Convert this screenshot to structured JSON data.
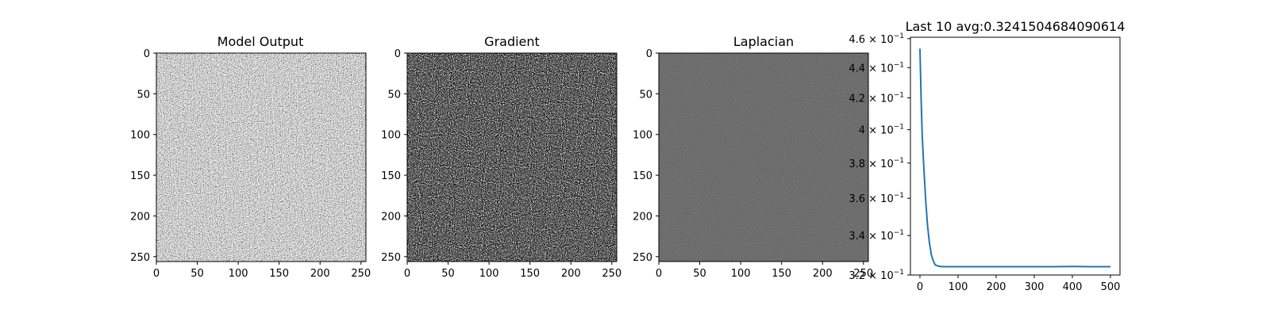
{
  "chart_data": [
    {
      "type": "heatmap",
      "title": "Model Output",
      "colormap": "gray",
      "texture": "uniform-noise-mid-gray",
      "x_ticks": [
        "0",
        "50",
        "100",
        "150",
        "200",
        "250"
      ],
      "y_ticks": [
        "0",
        "50",
        "100",
        "150",
        "200",
        "250"
      ],
      "xlim": [
        0,
        256
      ],
      "ylim": [
        256,
        0
      ]
    },
    {
      "type": "heatmap",
      "title": "Gradient",
      "colormap": "gray",
      "texture": "sparse-bright-on-dark",
      "x_ticks": [
        "0",
        "50",
        "100",
        "150",
        "200",
        "250"
      ],
      "y_ticks": [
        "0",
        "50",
        "100",
        "150",
        "200",
        "250"
      ],
      "xlim": [
        0,
        256
      ],
      "ylim": [
        256,
        0
      ]
    },
    {
      "type": "heatmap",
      "title": "Laplacian",
      "colormap": "gray",
      "texture": "flat-gray-sparse-specks",
      "x_ticks": [
        "0",
        "50",
        "100",
        "150",
        "200",
        "250"
      ],
      "y_ticks": [
        "0",
        "50",
        "100",
        "150",
        "200",
        "250"
      ],
      "xlim": [
        0,
        256
      ],
      "ylim": [
        256,
        0
      ]
    },
    {
      "type": "line",
      "title": "Last 10 avg:0.3241504684090614",
      "yscale": "log",
      "line_color": "#1f77b4",
      "x_ticks": [
        "0",
        "100",
        "200",
        "300",
        "400",
        "500"
      ],
      "xlim": [
        -25,
        525
      ],
      "y_ticks": [
        {
          "value": 0.46,
          "mantissa": "4.6",
          "exponent": "−1"
        },
        {
          "value": 0.44,
          "mantissa": "4.4",
          "exponent": "−1"
        },
        {
          "value": 0.42,
          "mantissa": "4.2",
          "exponent": "−1"
        },
        {
          "value": 0.4,
          "mantissa": "4",
          "exponent": "−1"
        },
        {
          "value": 0.38,
          "mantissa": "3.8",
          "exponent": "−1"
        },
        {
          "value": 0.36,
          "mantissa": "3.6",
          "exponent": "−1"
        },
        {
          "value": 0.34,
          "mantissa": "3.4",
          "exponent": "−1"
        },
        {
          "value": 0.32,
          "mantissa": "3.2",
          "exponent": "−1"
        }
      ],
      "ylim": [
        0.32,
        0.461
      ],
      "series": [
        {
          "x": [
            0,
            3,
            6,
            10,
            15,
            20,
            25,
            30,
            35,
            40,
            50,
            60,
            80,
            100,
            150,
            200,
            250,
            300,
            350,
            400,
            450,
            500
          ],
          "y": [
            0.453,
            0.42,
            0.396,
            0.378,
            0.359,
            0.345,
            0.336,
            0.33,
            0.327,
            0.325,
            0.3243,
            0.3241,
            0.3241,
            0.3241,
            0.3241,
            0.3241,
            0.3241,
            0.3241,
            0.3241,
            0.3242,
            0.3241,
            0.3241
          ]
        }
      ]
    }
  ]
}
